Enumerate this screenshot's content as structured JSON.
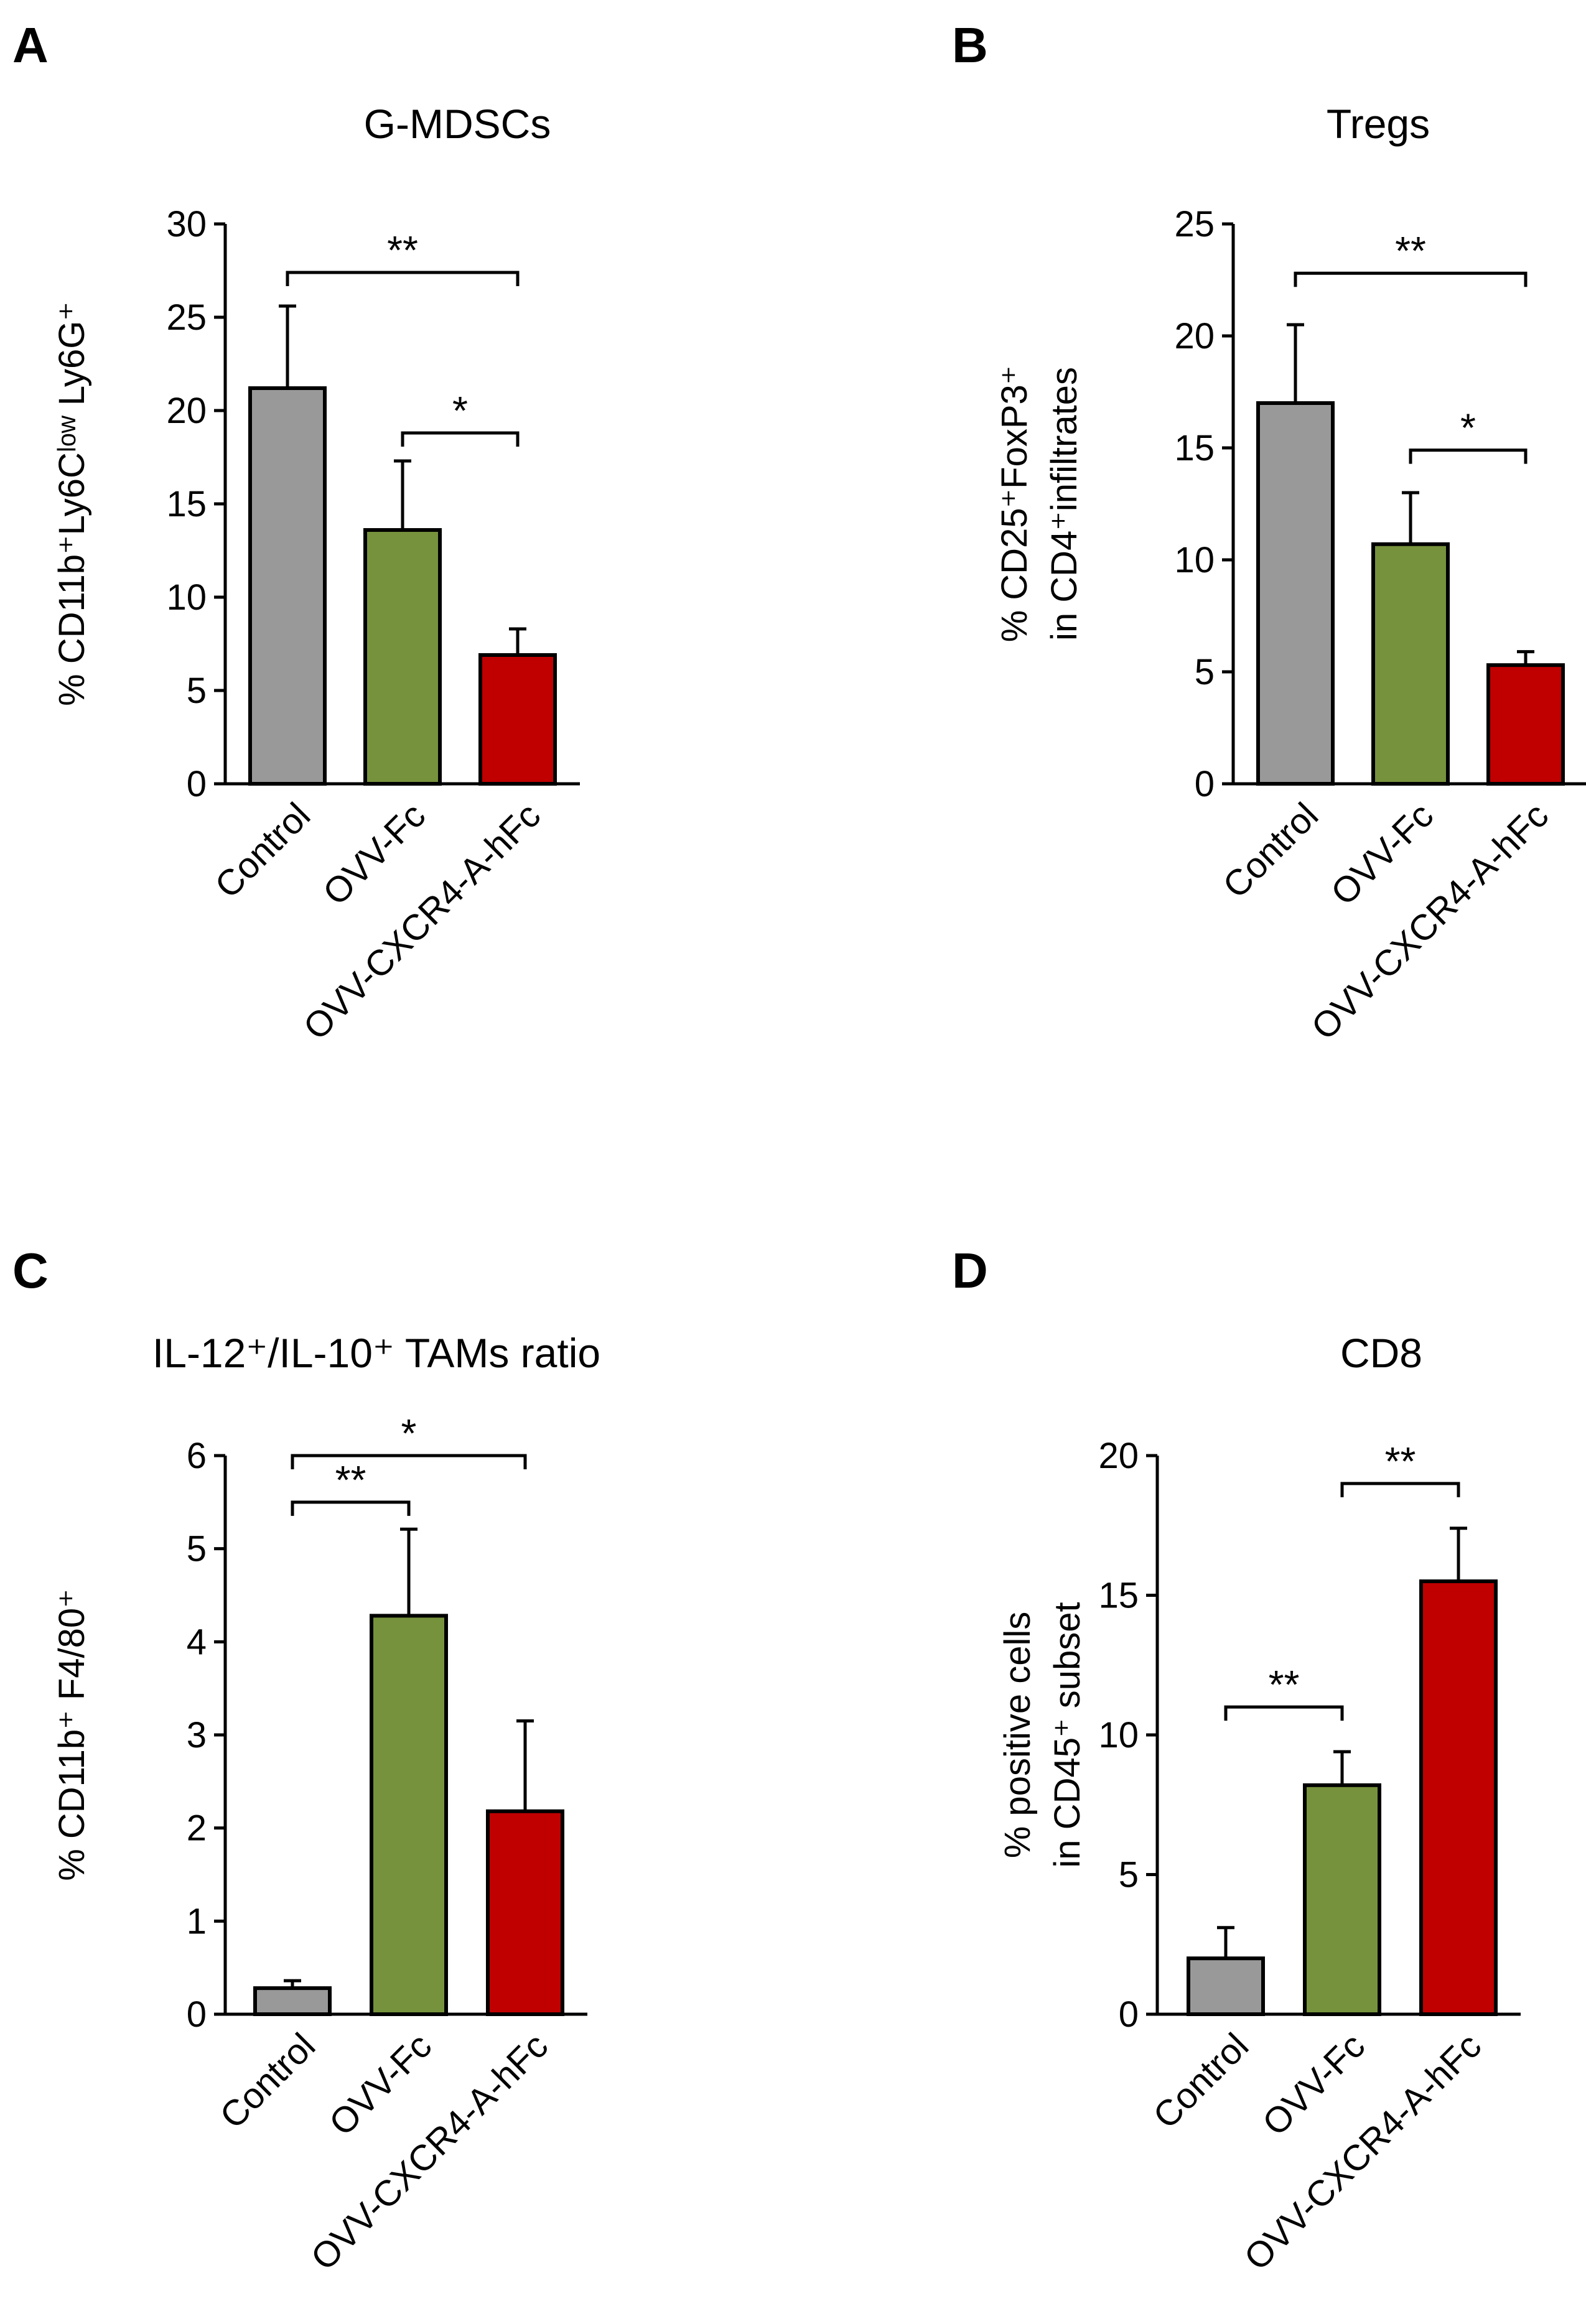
{
  "chart_data": [
    {
      "type": "bar",
      "panel": "A",
      "title": "G-MDSCs",
      "ylabel": "% CD11b⁺Ly6Cˡᵒʷ Ly6G⁺",
      "ylim": [
        0,
        30
      ],
      "yticks": [
        0,
        5,
        10,
        15,
        20,
        25,
        30
      ],
      "categories": [
        "Control",
        "OVV-Fc",
        "OVV-CXCR4-A-hFc"
      ],
      "values": [
        21.2,
        13.6,
        6.9
      ],
      "errors": [
        4.4,
        3.7,
        1.4
      ],
      "colors": [
        "#999999",
        "#76923C",
        "#C00000"
      ],
      "significance": [
        {
          "from": 0,
          "to": 2,
          "label": "**",
          "y": 27.4
        },
        {
          "from": 1,
          "to": 2,
          "label": "*",
          "y": 18.8
        }
      ]
    },
    {
      "type": "bar",
      "panel": "B",
      "title": "Tregs",
      "ylabel": [
        "% CD25⁺FoxP3⁺",
        "in CD4⁺infiltrates"
      ],
      "ylim": [
        0,
        25
      ],
      "yticks": [
        0,
        5,
        10,
        15,
        20,
        25
      ],
      "categories": [
        "Control",
        "OVV-Fc",
        "OVV-CXCR4-A-hFc"
      ],
      "values": [
        17.0,
        10.7,
        5.3
      ],
      "errors": [
        3.5,
        2.3,
        0.6
      ],
      "colors": [
        "#999999",
        "#76923C",
        "#C00000"
      ],
      "significance": [
        {
          "from": 0,
          "to": 2,
          "label": "**",
          "y": 22.8
        },
        {
          "from": 1,
          "to": 2,
          "label": "*",
          "y": 14.9
        }
      ]
    },
    {
      "type": "bar",
      "panel": "C",
      "title": "IL-12⁺/IL-10⁺ TAMs ratio",
      "ylabel": "% CD11b⁺ F4/80⁺",
      "ylim": [
        0,
        6
      ],
      "yticks": [
        0,
        1,
        2,
        3,
        4,
        5,
        6
      ],
      "categories": [
        "Control",
        "OVV-Fc",
        "OVV-CXCR4-A-hFc"
      ],
      "values": [
        0.28,
        4.28,
        2.18
      ],
      "errors": [
        0.08,
        0.93,
        0.97
      ],
      "colors": [
        "#999999",
        "#76923C",
        "#C00000"
      ],
      "significance": [
        {
          "from": 0,
          "to": 1,
          "label": "**",
          "y": 5.5
        },
        {
          "from": 0,
          "to": 2,
          "label": "*",
          "y": 6.0
        }
      ]
    },
    {
      "type": "bar",
      "panel": "D",
      "title": "CD8",
      "ylabel": [
        "% positive cells",
        "in CD45⁺ subset"
      ],
      "ylim": [
        0,
        20
      ],
      "yticks": [
        0,
        5,
        10,
        15,
        20
      ],
      "categories": [
        "Control",
        "OVV-Fc",
        "OVV-CXCR4-A-hFc"
      ],
      "values": [
        2.0,
        8.2,
        15.5
      ],
      "errors": [
        1.1,
        1.2,
        1.9
      ],
      "colors": [
        "#999999",
        "#76923C",
        "#C00000"
      ],
      "significance": [
        {
          "from": 0,
          "to": 1,
          "label": "**",
          "y": 11.0
        },
        {
          "from": 1,
          "to": 2,
          "label": "**",
          "y": 19.0
        }
      ]
    }
  ]
}
